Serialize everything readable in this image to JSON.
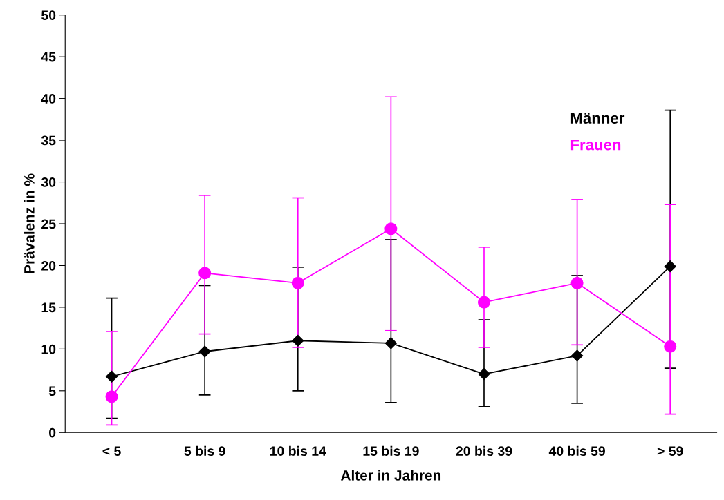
{
  "chart_data": {
    "type": "line",
    "xlabel": "Alter in Jahren",
    "ylabel": "Prävalenz in %",
    "categories": [
      "< 5",
      "5 bis 9",
      "10 bis 14",
      "15 bis 19",
      "20 bis 39",
      "40 bis 59",
      "> 59"
    ],
    "ylim": [
      0,
      50
    ],
    "yticks": [
      0,
      5,
      10,
      15,
      20,
      25,
      30,
      35,
      40,
      45,
      50
    ],
    "grid": false,
    "legend": "top right",
    "series": [
      {
        "name": "Männer",
        "color": "#000000",
        "marker": "diamond",
        "values": [
          6.7,
          9.7,
          11.0,
          10.7,
          7.0,
          9.2,
          19.9
        ],
        "errors": [
          [
            1.7,
            16.1
          ],
          [
            4.5,
            17.6
          ],
          [
            5.0,
            19.8
          ],
          [
            3.6,
            23.1
          ],
          [
            3.1,
            13.5
          ],
          [
            3.5,
            18.8
          ],
          [
            7.7,
            38.6
          ]
        ]
      },
      {
        "name": "Frauen",
        "color": "#ff00ff",
        "marker": "circle",
        "values": [
          4.3,
          19.1,
          17.9,
          24.4,
          15.6,
          17.9,
          10.3
        ],
        "errors": [
          [
            0.9,
            12.1
          ],
          [
            11.8,
            28.4
          ],
          [
            10.2,
            28.1
          ],
          [
            12.2,
            40.2
          ],
          [
            10.2,
            22.2
          ],
          [
            10.5,
            27.9
          ],
          [
            2.2,
            27.3
          ]
        ]
      }
    ]
  }
}
